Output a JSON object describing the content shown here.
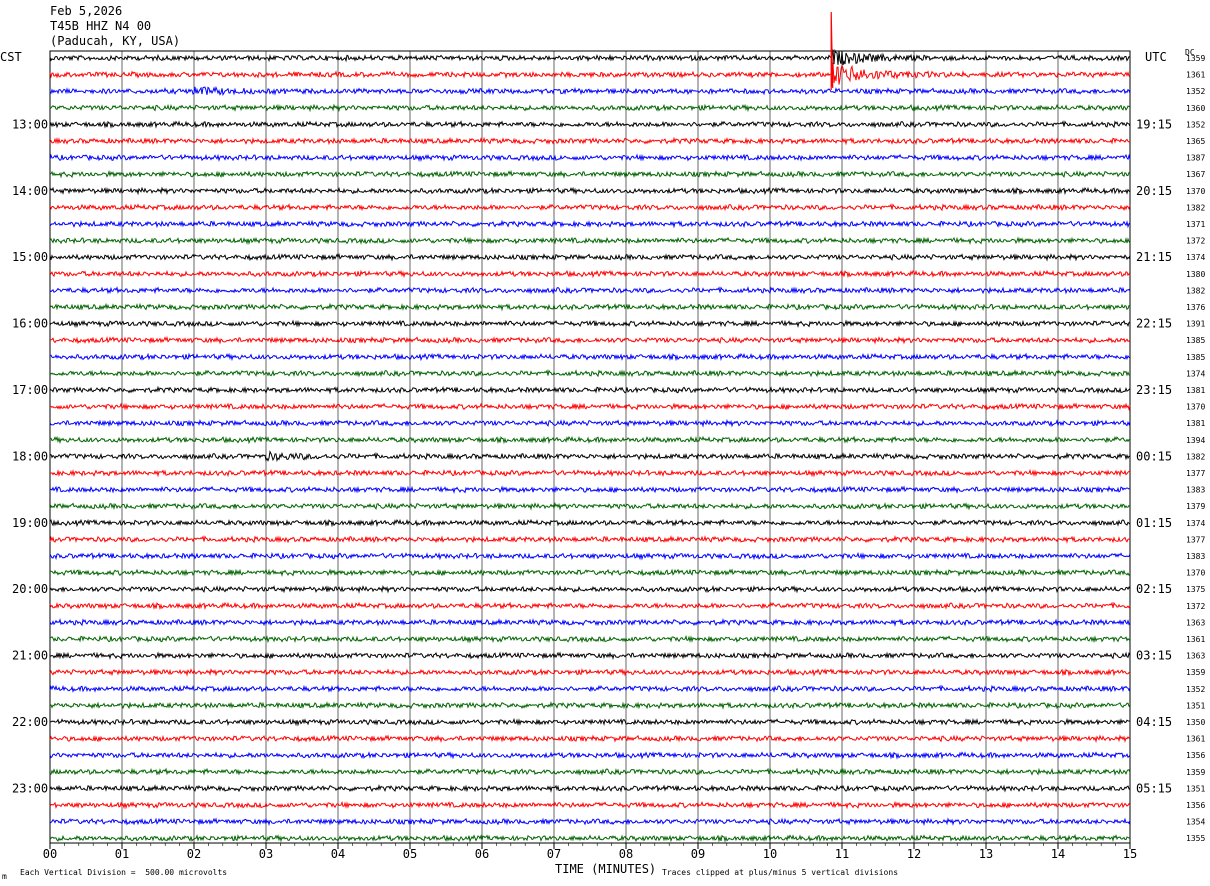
{
  "header": {
    "date": "Feb 5,2026",
    "station": "T45B HHZ N4 00",
    "location": "(Paducah, KY, USA)"
  },
  "left_zone": "CST",
  "right_zone": "UTC",
  "dc_label": "DC",
  "footer": {
    "division": "Each Vertical Division =  500.00 microvolts",
    "clip": "Traces clipped at plus/minus 5 vertical divisions",
    "mark": "m"
  },
  "chart_data": {
    "type": "line",
    "title": "",
    "xlabel": "TIME (MINUTES)",
    "xlim": [
      0,
      15
    ],
    "x_ticks": [
      "00",
      "01",
      "02",
      "03",
      "04",
      "05",
      "06",
      "07",
      "08",
      "09",
      "10",
      "11",
      "12",
      "13",
      "14",
      "15"
    ],
    "trace_colors": [
      "#000000",
      "#ff0000",
      "#0000ff",
      "#006400"
    ],
    "left_hour_labels": [
      "13:00",
      "14:00",
      "15:00",
      "16:00",
      "17:00",
      "18:00",
      "19:00",
      "20:00",
      "21:00",
      "22:00",
      "23:00"
    ],
    "right_hour_labels": [
      "19:15",
      "20:15",
      "21:15",
      "22:15",
      "23:15",
      "00:15",
      "01:15",
      "02:15",
      "03:15",
      "04:15",
      "05:15"
    ],
    "dc_offsets": [
      1359,
      1361,
      1352,
      1360,
      1352,
      1365,
      1387,
      1367,
      1370,
      1382,
      1371,
      1372,
      1374,
      1380,
      1382,
      1376,
      1391,
      1385,
      1385,
      1374,
      1381,
      1370,
      1381,
      1394,
      1382,
      1377,
      1383,
      1379,
      1374,
      1377,
      1383,
      1370,
      1375,
      1372,
      1363,
      1361,
      1363,
      1359,
      1352,
      1351,
      1350,
      1361,
      1356,
      1359,
      1351,
      1356,
      1354,
      1355
    ],
    "events": [
      {
        "trace": 1,
        "minute": 10.85,
        "amplitude": 5
      },
      {
        "trace": 0,
        "minute": 10.85,
        "amplitude": 3
      },
      {
        "trace": 2,
        "minute": 1.95,
        "amplitude": 1.5
      },
      {
        "trace": 24,
        "minute": 3.0,
        "amplitude": 1.2
      }
    ]
  }
}
